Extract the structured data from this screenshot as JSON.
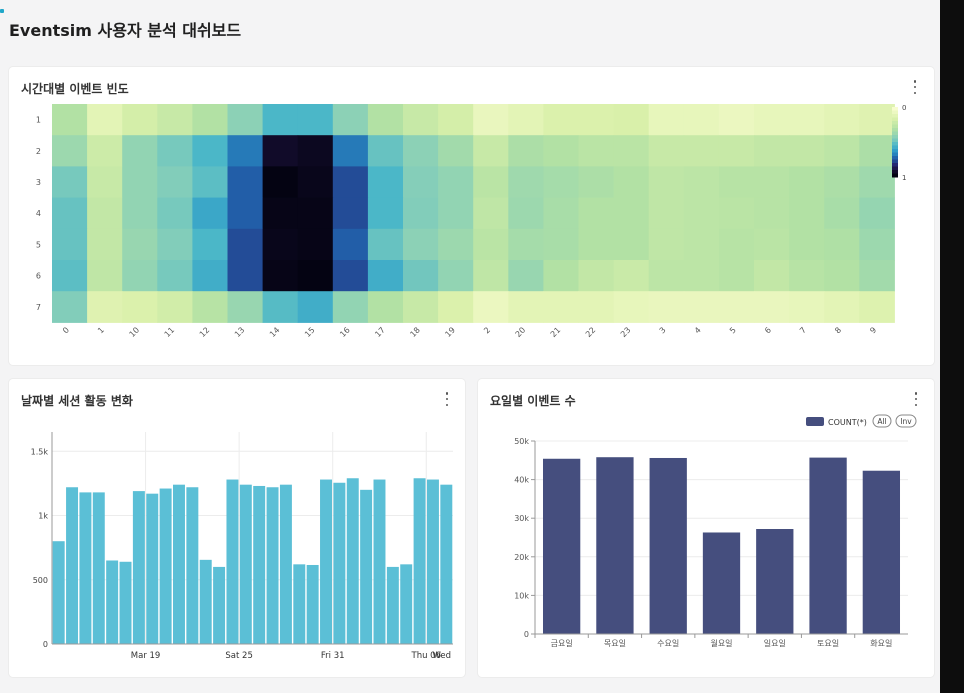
{
  "dashboard": {
    "title": "Eventsim 사용자 분석 대쉬보드"
  },
  "heatmap": {
    "title": "시간대별 이벤트 빈도",
    "chart_data": {
      "type": "heatmap",
      "x": [
        "0",
        "1",
        "10",
        "11",
        "12",
        "13",
        "14",
        "15",
        "16",
        "17",
        "18",
        "19",
        "2",
        "20",
        "21",
        "22",
        "23",
        "3",
        "4",
        "5",
        "6",
        "7",
        "8",
        "9"
      ],
      "y": [
        "1",
        "2",
        "3",
        "4",
        "5",
        "6",
        "7"
      ],
      "values": [
        [
          0.3,
          0.1,
          0.17,
          0.22,
          0.3,
          0.42,
          0.55,
          0.55,
          0.42,
          0.3,
          0.22,
          0.17,
          0.07,
          0.1,
          0.14,
          0.14,
          0.15,
          0.08,
          0.08,
          0.06,
          0.08,
          0.08,
          0.1,
          0.12
        ],
        [
          0.37,
          0.2,
          0.4,
          0.47,
          0.55,
          0.7,
          0.95,
          0.97,
          0.7,
          0.5,
          0.42,
          0.35,
          0.22,
          0.32,
          0.3,
          0.27,
          0.27,
          0.22,
          0.22,
          0.22,
          0.24,
          0.24,
          0.26,
          0.32
        ],
        [
          0.47,
          0.22,
          0.4,
          0.45,
          0.52,
          0.75,
          1.0,
          0.98,
          0.78,
          0.55,
          0.44,
          0.4,
          0.27,
          0.36,
          0.34,
          0.32,
          0.3,
          0.25,
          0.26,
          0.28,
          0.28,
          0.3,
          0.32,
          0.36
        ],
        [
          0.5,
          0.24,
          0.4,
          0.47,
          0.6,
          0.75,
          0.99,
          0.99,
          0.78,
          0.55,
          0.45,
          0.4,
          0.25,
          0.37,
          0.33,
          0.3,
          0.3,
          0.25,
          0.26,
          0.27,
          0.28,
          0.3,
          0.33,
          0.39
        ],
        [
          0.5,
          0.24,
          0.38,
          0.45,
          0.55,
          0.78,
          0.98,
          0.99,
          0.75,
          0.5,
          0.42,
          0.37,
          0.27,
          0.34,
          0.33,
          0.3,
          0.3,
          0.25,
          0.26,
          0.28,
          0.27,
          0.3,
          0.31,
          0.37
        ],
        [
          0.52,
          0.25,
          0.4,
          0.47,
          0.58,
          0.78,
          0.99,
          1.0,
          0.78,
          0.58,
          0.48,
          0.4,
          0.25,
          0.38,
          0.3,
          0.24,
          0.21,
          0.26,
          0.26,
          0.28,
          0.24,
          0.28,
          0.3,
          0.35
        ],
        [
          0.45,
          0.12,
          0.14,
          0.18,
          0.28,
          0.38,
          0.53,
          0.58,
          0.4,
          0.3,
          0.22,
          0.14,
          0.06,
          0.1,
          0.1,
          0.1,
          0.08,
          0.07,
          0.07,
          0.07,
          0.07,
          0.08,
          0.1,
          0.13
        ]
      ],
      "legend_labels": [
        "0",
        "1"
      ],
      "legend": "right"
    }
  },
  "sessions": {
    "title": "날짜별 세션 활동 변화",
    "chart_data": {
      "type": "bar",
      "values": [
        800,
        1220,
        1180,
        1180,
        650,
        640,
        1190,
        1170,
        1210,
        1240,
        1220,
        655,
        600,
        1280,
        1240,
        1230,
        1220,
        1240,
        620,
        615,
        1280,
        1255,
        1290,
        1200,
        1280,
        600,
        620,
        1290,
        1280,
        1240
      ],
      "x_tick_labels": [
        "Mar 19",
        "Sat 25",
        "Fri 31",
        "Thu 06",
        "Wed"
      ],
      "y_ticks": [
        "0",
        "500",
        "1k",
        "1.5k"
      ],
      "ylim": [
        0,
        1650
      ],
      "color": "#5bbfd6",
      "grid": true
    }
  },
  "weekday": {
    "title": "요일별 이벤트 수",
    "legend_label": "COUNT(*)",
    "legend_all": "All",
    "legend_inv": "Inv",
    "chart_data": {
      "type": "bar",
      "categories": [
        "금요일",
        "목요일",
        "수요일",
        "월요일",
        "일요일",
        "토요일",
        "화요일"
      ],
      "series": [
        {
          "name": "COUNT(*)",
          "values": [
            45400,
            45800,
            45600,
            26300,
            27200,
            45700,
            42300
          ]
        }
      ],
      "y_ticks": [
        "0",
        "10k",
        "20k",
        "30k",
        "40k",
        "50k"
      ],
      "ylim": [
        0,
        50000
      ],
      "color": "#454e7e",
      "grid": true,
      "legend": "top-right"
    }
  }
}
